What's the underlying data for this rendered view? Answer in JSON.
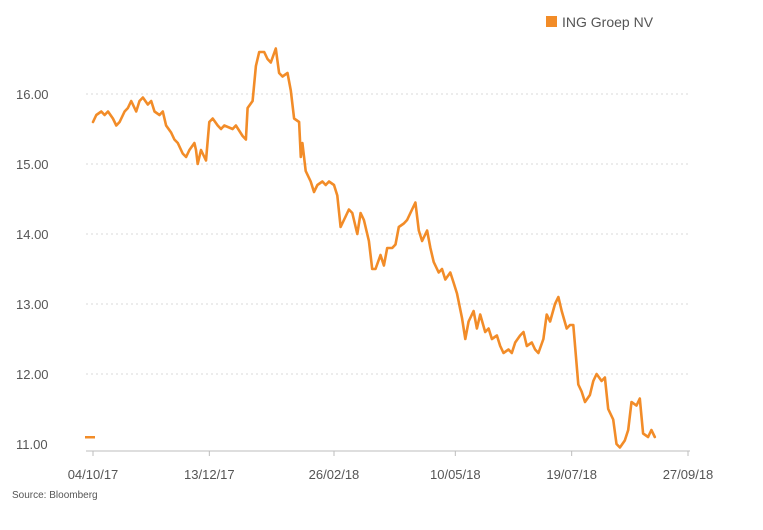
{
  "chart_data": {
    "type": "line",
    "title": "",
    "xlabel": "",
    "ylabel": "",
    "ylim": [
      10.9,
      16.9
    ],
    "grid": true,
    "legend_placement": "top-right",
    "source": "Source: Bloomberg",
    "y_ticks": [
      {
        "value": 11.0,
        "label": "11.00"
      },
      {
        "value": 12.0,
        "label": "12.00"
      },
      {
        "value": 13.0,
        "label": "13.00"
      },
      {
        "value": 14.0,
        "label": "14.00"
      },
      {
        "value": 15.0,
        "label": "15.00"
      },
      {
        "value": 16.0,
        "label": "16.00"
      }
    ],
    "x_ticks": [
      {
        "date": "2017-10-04",
        "label": "04/10/17"
      },
      {
        "date": "2017-12-13",
        "label": "13/12/17"
      },
      {
        "date": "2018-02-26",
        "label": "26/02/18"
      },
      {
        "date": "2018-05-10",
        "label": "10/05/18"
      },
      {
        "date": "2018-07-19",
        "label": "19/07/18"
      },
      {
        "date": "2018-09-27",
        "label": "27/09/18"
      }
    ],
    "series": [
      {
        "name": "ING Groep NV",
        "color": "#f28c28",
        "points": [
          [
            "2017-10-04",
            15.6
          ],
          [
            "2017-10-06",
            15.7
          ],
          [
            "2017-10-09",
            15.75
          ],
          [
            "2017-10-11",
            15.7
          ],
          [
            "2017-10-13",
            15.75
          ],
          [
            "2017-10-16",
            15.65
          ],
          [
            "2017-10-18",
            15.55
          ],
          [
            "2017-10-20",
            15.6
          ],
          [
            "2017-10-23",
            15.75
          ],
          [
            "2017-10-25",
            15.8
          ],
          [
            "2017-10-27",
            15.9
          ],
          [
            "2017-10-30",
            15.75
          ],
          [
            "2017-11-01",
            15.9
          ],
          [
            "2017-11-03",
            15.95
          ],
          [
            "2017-11-06",
            15.85
          ],
          [
            "2017-11-08",
            15.9
          ],
          [
            "2017-11-10",
            15.75
          ],
          [
            "2017-11-13",
            15.7
          ],
          [
            "2017-11-15",
            15.75
          ],
          [
            "2017-11-17",
            15.55
          ],
          [
            "2017-11-20",
            15.45
          ],
          [
            "2017-11-22",
            15.35
          ],
          [
            "2017-11-24",
            15.3
          ],
          [
            "2017-11-27",
            15.15
          ],
          [
            "2017-11-29",
            15.1
          ],
          [
            "2017-12-01",
            15.2
          ],
          [
            "2017-12-04",
            15.3
          ],
          [
            "2017-12-05",
            15.2
          ],
          [
            "2017-12-06",
            15.0
          ],
          [
            "2017-12-08",
            15.2
          ],
          [
            "2017-12-11",
            15.05
          ],
          [
            "2017-12-13",
            15.6
          ],
          [
            "2017-12-15",
            15.65
          ],
          [
            "2017-12-18",
            15.55
          ],
          [
            "2017-12-20",
            15.5
          ],
          [
            "2017-12-22",
            15.55
          ],
          [
            "2017-12-27",
            15.5
          ],
          [
            "2017-12-29",
            15.55
          ],
          [
            "2018-01-02",
            15.4
          ],
          [
            "2018-01-04",
            15.35
          ],
          [
            "2018-01-05",
            15.8
          ],
          [
            "2018-01-08",
            15.9
          ],
          [
            "2018-01-10",
            16.4
          ],
          [
            "2018-01-12",
            16.6
          ],
          [
            "2018-01-15",
            16.6
          ],
          [
            "2018-01-17",
            16.5
          ],
          [
            "2018-01-19",
            16.45
          ],
          [
            "2018-01-22",
            16.65
          ],
          [
            "2018-01-24",
            16.3
          ],
          [
            "2018-01-26",
            16.25
          ],
          [
            "2018-01-29",
            16.3
          ],
          [
            "2018-01-31",
            16.05
          ],
          [
            "2018-02-02",
            15.65
          ],
          [
            "2018-02-05",
            15.6
          ],
          [
            "2018-02-06",
            15.1
          ],
          [
            "2018-02-07",
            15.3
          ],
          [
            "2018-02-09",
            14.9
          ],
          [
            "2018-02-12",
            14.75
          ],
          [
            "2018-02-14",
            14.6
          ],
          [
            "2018-02-16",
            14.7
          ],
          [
            "2018-02-19",
            14.75
          ],
          [
            "2018-02-21",
            14.7
          ],
          [
            "2018-02-23",
            14.75
          ],
          [
            "2018-02-26",
            14.7
          ],
          [
            "2018-02-28",
            14.55
          ],
          [
            "2018-03-02",
            14.1
          ],
          [
            "2018-03-05",
            14.25
          ],
          [
            "2018-03-07",
            14.35
          ],
          [
            "2018-03-09",
            14.3
          ],
          [
            "2018-03-12",
            14.0
          ],
          [
            "2018-03-14",
            14.3
          ],
          [
            "2018-03-16",
            14.2
          ],
          [
            "2018-03-19",
            13.9
          ],
          [
            "2018-03-21",
            13.5
          ],
          [
            "2018-03-23",
            13.5
          ],
          [
            "2018-03-26",
            13.7
          ],
          [
            "2018-03-28",
            13.55
          ],
          [
            "2018-03-30",
            13.8
          ],
          [
            "2018-04-02",
            13.8
          ],
          [
            "2018-04-04",
            13.85
          ],
          [
            "2018-04-06",
            14.1
          ],
          [
            "2018-04-09",
            14.15
          ],
          [
            "2018-04-11",
            14.2
          ],
          [
            "2018-04-13",
            14.3
          ],
          [
            "2018-04-16",
            14.45
          ],
          [
            "2018-04-18",
            14.05
          ],
          [
            "2018-04-20",
            13.9
          ],
          [
            "2018-04-23",
            14.05
          ],
          [
            "2018-04-25",
            13.8
          ],
          [
            "2018-04-27",
            13.6
          ],
          [
            "2018-04-30",
            13.45
          ],
          [
            "2018-05-02",
            13.5
          ],
          [
            "2018-05-04",
            13.35
          ],
          [
            "2018-05-07",
            13.45
          ],
          [
            "2018-05-09",
            13.3
          ],
          [
            "2018-05-11",
            13.15
          ],
          [
            "2018-05-14",
            12.8
          ],
          [
            "2018-05-16",
            12.5
          ],
          [
            "2018-05-18",
            12.75
          ],
          [
            "2018-05-21",
            12.9
          ],
          [
            "2018-05-23",
            12.65
          ],
          [
            "2018-05-25",
            12.85
          ],
          [
            "2018-05-28",
            12.6
          ],
          [
            "2018-05-30",
            12.65
          ],
          [
            "2018-06-01",
            12.5
          ],
          [
            "2018-06-04",
            12.55
          ],
          [
            "2018-06-06",
            12.4
          ],
          [
            "2018-06-08",
            12.3
          ],
          [
            "2018-06-11",
            12.35
          ],
          [
            "2018-06-13",
            12.3
          ],
          [
            "2018-06-15",
            12.45
          ],
          [
            "2018-06-18",
            12.55
          ],
          [
            "2018-06-20",
            12.6
          ],
          [
            "2018-06-22",
            12.4
          ],
          [
            "2018-06-25",
            12.45
          ],
          [
            "2018-06-27",
            12.35
          ],
          [
            "2018-06-29",
            12.3
          ],
          [
            "2018-07-02",
            12.5
          ],
          [
            "2018-07-04",
            12.85
          ],
          [
            "2018-07-06",
            12.75
          ],
          [
            "2018-07-09",
            13.0
          ],
          [
            "2018-07-11",
            13.1
          ],
          [
            "2018-07-13",
            12.9
          ],
          [
            "2018-07-16",
            12.65
          ],
          [
            "2018-07-18",
            12.7
          ],
          [
            "2018-07-20",
            12.7
          ],
          [
            "2018-07-23",
            11.85
          ],
          [
            "2018-07-25",
            11.75
          ],
          [
            "2018-07-27",
            11.6
          ],
          [
            "2018-07-30",
            11.7
          ],
          [
            "2018-08-01",
            11.9
          ],
          [
            "2018-08-03",
            12.0
          ],
          [
            "2018-08-06",
            11.9
          ],
          [
            "2018-08-08",
            11.95
          ],
          [
            "2018-08-10",
            11.5
          ],
          [
            "2018-08-13",
            11.35
          ],
          [
            "2018-08-15",
            11.0
          ],
          [
            "2018-08-17",
            10.95
          ],
          [
            "2018-08-20",
            11.05
          ],
          [
            "2018-08-22",
            11.2
          ],
          [
            "2018-08-24",
            11.6
          ],
          [
            "2018-08-27",
            11.55
          ],
          [
            "2018-08-29",
            11.65
          ],
          [
            "2018-08-31",
            11.15
          ],
          [
            "2018-09-03",
            11.1
          ],
          [
            "2018-09-05",
            11.2
          ],
          [
            "2018-09-07",
            11.1
          ]
        ]
      }
    ]
  },
  "legend": {
    "items": [
      {
        "label": "ING Groep NV",
        "color": "#f28c28"
      }
    ]
  }
}
